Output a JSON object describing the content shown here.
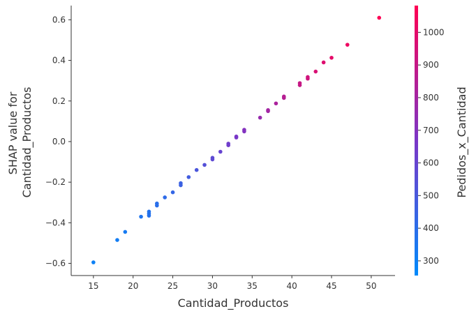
{
  "chart_data": {
    "type": "scatter",
    "xlabel": "Cantidad_Productos",
    "ylabel": [
      "SHAP value for",
      "Cantidad_Productos"
    ],
    "xlim": [
      12.2,
      53
    ],
    "ylim": [
      -0.66,
      0.67
    ],
    "xticks": [
      15,
      20,
      25,
      30,
      35,
      40,
      45,
      50
    ],
    "yticks": [
      -0.6,
      -0.4,
      -0.2,
      0.0,
      0.2,
      0.4,
      0.6
    ],
    "xtick_labels": [
      "15",
      "20",
      "25",
      "30",
      "35",
      "40",
      "45",
      "50"
    ],
    "ytick_labels": [
      "−0.6",
      "−0.4",
      "−0.2",
      "0.0",
      "0.2",
      "0.4",
      "0.6"
    ],
    "grid": false,
    "colorbar": {
      "label": "Pedidos_x_Cantidad",
      "range": [
        255,
        1082
      ],
      "ticks": [
        300,
        400,
        500,
        600,
        700,
        800,
        900,
        1000
      ],
      "tick_labels": [
        "300",
        "400",
        "500",
        "600",
        "700",
        "800",
        "900",
        "1000"
      ],
      "colors": [
        "#008afb",
        "#7a36c7",
        "#ff0052"
      ]
    },
    "points": [
      {
        "x": 15,
        "y": -0.595,
        "c": 300
      },
      {
        "x": 18,
        "y": -0.485,
        "c": 320
      },
      {
        "x": 19,
        "y": -0.445,
        "c": 330
      },
      {
        "x": 21,
        "y": -0.37,
        "c": 360
      },
      {
        "x": 22,
        "y": -0.345,
        "c": 370
      },
      {
        "x": 22,
        "y": -0.355,
        "c": 375
      },
      {
        "x": 22,
        "y": -0.365,
        "c": 380
      },
      {
        "x": 23,
        "y": -0.305,
        "c": 390
      },
      {
        "x": 23,
        "y": -0.315,
        "c": 395
      },
      {
        "x": 24,
        "y": -0.275,
        "c": 410
      },
      {
        "x": 25,
        "y": -0.25,
        "c": 430
      },
      {
        "x": 26,
        "y": -0.205,
        "c": 450
      },
      {
        "x": 26,
        "y": -0.215,
        "c": 455
      },
      {
        "x": 27,
        "y": -0.175,
        "c": 480
      },
      {
        "x": 28,
        "y": -0.14,
        "c": 510
      },
      {
        "x": 29,
        "y": -0.115,
        "c": 540
      },
      {
        "x": 30,
        "y": -0.08,
        "c": 570
      },
      {
        "x": 30,
        "y": -0.088,
        "c": 575
      },
      {
        "x": 31,
        "y": -0.05,
        "c": 600
      },
      {
        "x": 32,
        "y": -0.01,
        "c": 630
      },
      {
        "x": 32,
        "y": -0.018,
        "c": 635
      },
      {
        "x": 33,
        "y": 0.02,
        "c": 660
      },
      {
        "x": 33,
        "y": 0.025,
        "c": 665
      },
      {
        "x": 34,
        "y": 0.05,
        "c": 690
      },
      {
        "x": 34,
        "y": 0.058,
        "c": 700
      },
      {
        "x": 36,
        "y": 0.118,
        "c": 760
      },
      {
        "x": 37,
        "y": 0.15,
        "c": 790
      },
      {
        "x": 37,
        "y": 0.155,
        "c": 795
      },
      {
        "x": 38,
        "y": 0.188,
        "c": 820
      },
      {
        "x": 39,
        "y": 0.215,
        "c": 850
      },
      {
        "x": 39,
        "y": 0.222,
        "c": 855
      },
      {
        "x": 41,
        "y": 0.278,
        "c": 900
      },
      {
        "x": 41,
        "y": 0.288,
        "c": 905
      },
      {
        "x": 42,
        "y": 0.31,
        "c": 930
      },
      {
        "x": 42,
        "y": 0.318,
        "c": 935
      },
      {
        "x": 43,
        "y": 0.345,
        "c": 960
      },
      {
        "x": 44,
        "y": 0.39,
        "c": 980
      },
      {
        "x": 45,
        "y": 0.413,
        "c": 1000
      },
      {
        "x": 47,
        "y": 0.477,
        "c": 1030
      },
      {
        "x": 51,
        "y": 0.61,
        "c": 1075
      }
    ]
  }
}
